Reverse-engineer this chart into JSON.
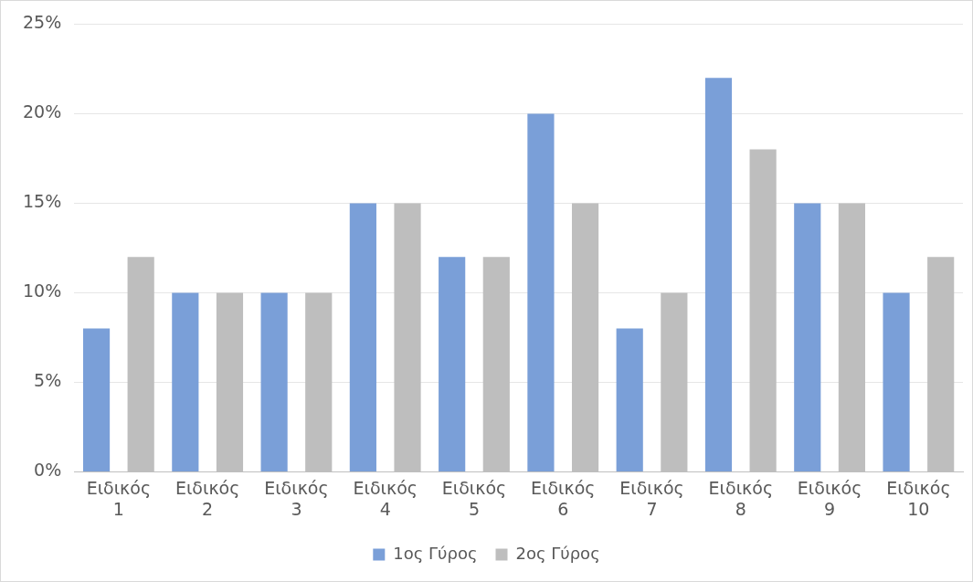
{
  "chart_data": {
    "type": "bar",
    "categories": [
      "Ειδικός 1",
      "Ειδικός 2",
      "Ειδικός 3",
      "Ειδικός 4",
      "Ειδικός 5",
      "Ειδικός 6",
      "Ειδικός 7",
      "Ειδικός 8",
      "Ειδικός 9",
      "Ειδικός 10"
    ],
    "series": [
      {
        "name": "1ος Γύρος",
        "color": "#7a9fd8",
        "values": [
          8,
          10,
          10,
          15,
          12,
          20,
          8,
          22,
          15,
          10
        ]
      },
      {
        "name": "2ος Γύρος",
        "color": "#bebebe",
        "values": [
          12,
          10,
          10,
          15,
          12,
          15,
          10,
          18,
          15,
          12
        ]
      }
    ],
    "ylim": [
      0,
      25
    ],
    "yticks": [
      {
        "value": 0,
        "label": "0%"
      },
      {
        "value": 5,
        "label": "5%"
      },
      {
        "value": 10,
        "label": "10%"
      },
      {
        "value": 15,
        "label": "15%"
      },
      {
        "value": 20,
        "label": "20%"
      },
      {
        "value": 25,
        "label": "25%"
      }
    ],
    "grid": "y",
    "legend": "bottom"
  }
}
